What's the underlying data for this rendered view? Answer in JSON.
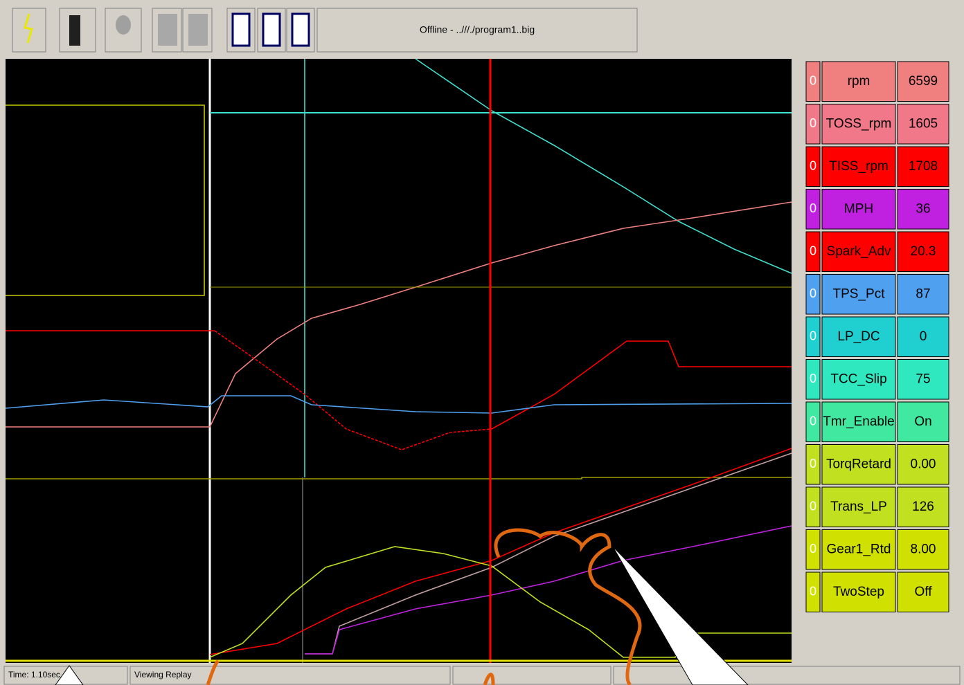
{
  "toolbar": {
    "title": "Offline - ..///./program1..big"
  },
  "channels": [
    {
      "indicator": "0",
      "name": "rpm",
      "value": "6599",
      "color": "#f08080"
    },
    {
      "indicator": "0",
      "name": "TOSS_rpm",
      "value": "1605",
      "color": "#f07888"
    },
    {
      "indicator": "0",
      "name": "TISS_rpm",
      "value": "1708",
      "color": "#ff0000"
    },
    {
      "indicator": "0",
      "name": "MPH",
      "value": "36",
      "color": "#c020e0"
    },
    {
      "indicator": "0",
      "name": "Spark_Adv",
      "value": "20.3",
      "color": "#ff0000"
    },
    {
      "indicator": "0",
      "name": "TPS_Pct",
      "value": "87",
      "color": "#50a0f0"
    },
    {
      "indicator": "0",
      "name": "LP_DC",
      "value": "0",
      "color": "#20d0d0"
    },
    {
      "indicator": "0",
      "name": "TCC_Slip",
      "value": "75",
      "color": "#30e8c0"
    },
    {
      "indicator": "0",
      "name": "Tmr_Enable",
      "value": "On",
      "color": "#40e8a0"
    },
    {
      "indicator": "0",
      "name": "TorqRetard",
      "value": "0.00",
      "color": "#c0e020"
    },
    {
      "indicator": "0",
      "name": "Trans_LP",
      "value": "126",
      "color": "#c0e020"
    },
    {
      "indicator": "0",
      "name": "Gear1_Rtd",
      "value": "8.00",
      "color": "#d0e000"
    },
    {
      "indicator": "0",
      "name": "TwoStep",
      "value": "Off",
      "color": "#d0e000"
    }
  ],
  "status_bar": {
    "time": "Time: 1.10sec",
    "mode": "Viewing Replay"
  }
}
